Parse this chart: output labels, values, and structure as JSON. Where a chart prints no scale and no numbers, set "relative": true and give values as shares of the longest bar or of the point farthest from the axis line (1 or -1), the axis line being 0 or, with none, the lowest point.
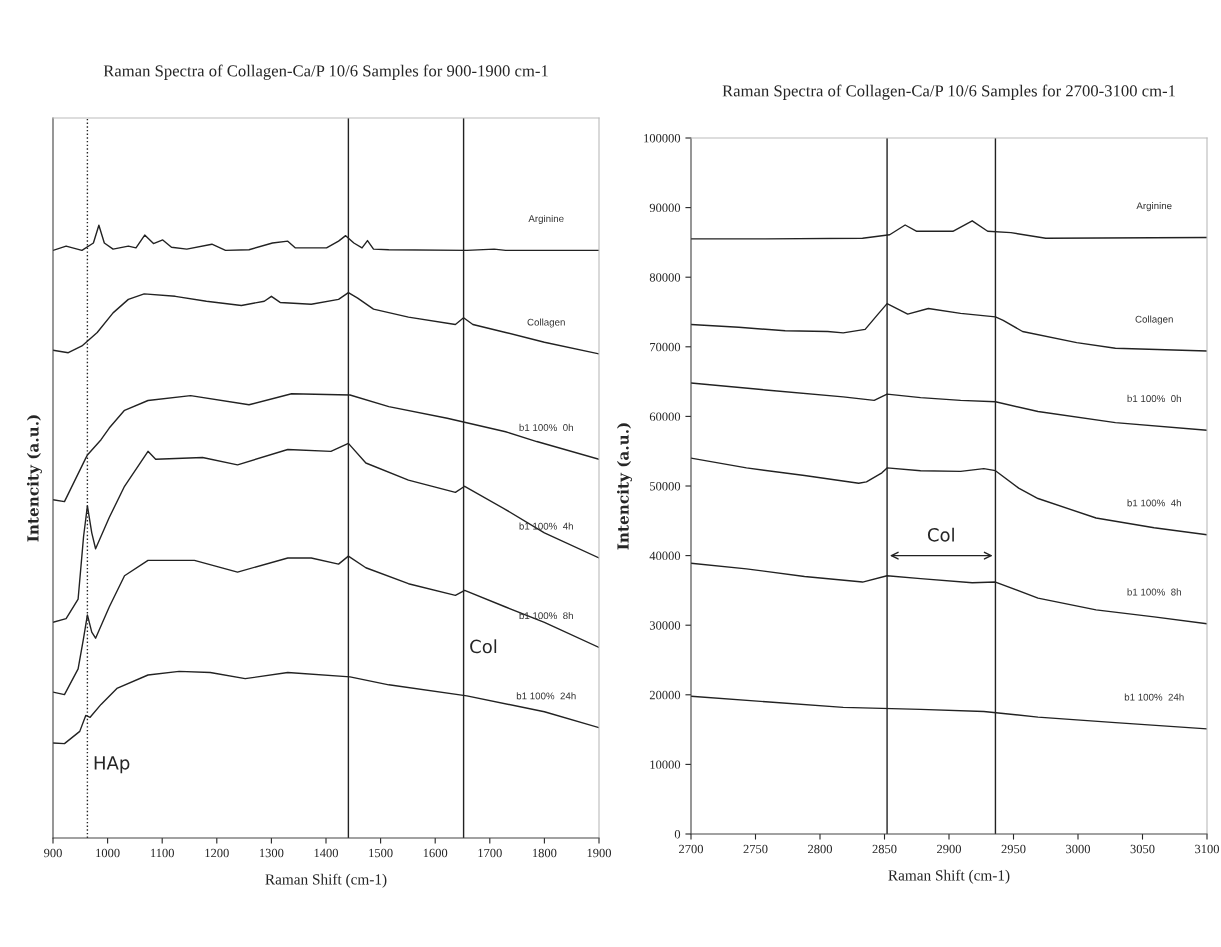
{
  "chart_data": [
    {
      "type": "line",
      "title": "Raman Spectra of Collagen-Ca/P 10/6 Samples for 900-1900 cm-1",
      "xlabel": "Raman Shift (cm-1)",
      "ylabel": "Intencity (a.u.)",
      "relative": true,
      "tick_labels": "x",
      "legend": false,
      "xlim": [
        900,
        1900
      ],
      "xticks": [
        900,
        1000,
        1100,
        1200,
        1300,
        1400,
        1500,
        1600,
        1700,
        1800,
        1900
      ],
      "series": [
        {
          "name": "Arginine",
          "color": "#222222",
          "x": [
            900,
            924,
            953,
            974,
            984,
            994,
            1010,
            1038,
            1052,
            1068,
            1084,
            1101,
            1117,
            1145,
            1191,
            1216,
            1259,
            1302,
            1330,
            1344,
            1401,
            1423,
            1436,
            1451,
            1466,
            1476,
            1487,
            1515,
            1658,
            1708,
            1729,
            1900
          ],
          "values": [
            0.959,
            0.966,
            0.959,
            0.971,
            1.0,
            0.971,
            0.961,
            0.966,
            0.963,
            0.984,
            0.97,
            0.976,
            0.964,
            0.961,
            0.969,
            0.959,
            0.96,
            0.971,
            0.974,
            0.963,
            0.963,
            0.974,
            0.983,
            0.971,
            0.963,
            0.975,
            0.961,
            0.96,
            0.959,
            0.961,
            0.959,
            0.959
          ]
        },
        {
          "name": "Collagen",
          "color": "#222222",
          "x": [
            900,
            928,
            953,
            981,
            1010,
            1038,
            1067,
            1124,
            1181,
            1245,
            1287,
            1300,
            1316,
            1373,
            1423,
            1441,
            1458,
            1487,
            1551,
            1637,
            1652,
            1669,
            1729,
            1800,
            1900
          ],
          "values": [
            0.796,
            0.792,
            0.803,
            0.825,
            0.857,
            0.879,
            0.888,
            0.884,
            0.876,
            0.869,
            0.876,
            0.884,
            0.874,
            0.871,
            0.879,
            0.89,
            0.881,
            0.863,
            0.85,
            0.838,
            0.849,
            0.838,
            0.825,
            0.809,
            0.79
          ]
        },
        {
          "name": "b1 100%  0h",
          "color": "#222222",
          "x": [
            900,
            921,
            960,
            963,
            988,
            1003,
            1031,
            1074,
            1152,
            1259,
            1337,
            1444,
            1515,
            1622,
            1729,
            1786,
            1900
          ],
          "values": [
            0.552,
            0.549,
            0.62,
            0.625,
            0.65,
            0.669,
            0.698,
            0.714,
            0.722,
            0.707,
            0.725,
            0.723,
            0.704,
            0.685,
            0.663,
            0.647,
            0.618
          ]
        },
        {
          "name": "b1 100%  4h",
          "color": "#222222",
          "x": [
            900,
            924,
            946,
            956,
            963,
            971,
            978,
            1003,
            1031,
            1074,
            1088,
            1174,
            1238,
            1330,
            1409,
            1441,
            1473,
            1551,
            1637,
            1654,
            1729,
            1800,
            1900
          ],
          "values": [
            0.352,
            0.358,
            0.39,
            0.492,
            0.542,
            0.498,
            0.472,
            0.523,
            0.574,
            0.631,
            0.618,
            0.621,
            0.609,
            0.634,
            0.631,
            0.644,
            0.612,
            0.584,
            0.564,
            0.574,
            0.536,
            0.498,
            0.457
          ]
        },
        {
          "name": "b1 100%  8h",
          "color": "#222222",
          "x": [
            900,
            921,
            946,
            956,
            963,
            971,
            978,
            1003,
            1031,
            1074,
            1159,
            1238,
            1330,
            1373,
            1423,
            1441,
            1473,
            1551,
            1637,
            1654,
            1729,
            1800,
            1900
          ],
          "values": [
            0.238,
            0.234,
            0.276,
            0.326,
            0.364,
            0.336,
            0.326,
            0.377,
            0.428,
            0.453,
            0.453,
            0.434,
            0.457,
            0.457,
            0.447,
            0.46,
            0.441,
            0.415,
            0.396,
            0.404,
            0.377,
            0.352,
            0.311
          ]
        },
        {
          "name": "b1 100%  24h",
          "color": "#222222",
          "x": [
            900,
            921,
            949,
            960,
            968,
            988,
            1017,
            1074,
            1131,
            1188,
            1252,
            1330,
            1444,
            1515,
            1658,
            1800,
            1900
          ],
          "values": [
            0.155,
            0.154,
            0.174,
            0.2,
            0.197,
            0.218,
            0.244,
            0.266,
            0.272,
            0.27,
            0.26,
            0.27,
            0.263,
            0.25,
            0.232,
            0.206,
            0.18
          ]
        }
      ],
      "ref_lines": [
        {
          "axis": "x",
          "value": 963,
          "line_style": "dotted",
          "color": "#222222"
        },
        {
          "axis": "x",
          "value": 1441,
          "line_style": "solid",
          "color": "#222222"
        },
        {
          "axis": "x",
          "value": 1652,
          "line_style": "solid",
          "color": "#222222"
        }
      ],
      "annotations": [
        {
          "text": "HAp",
          "x": 963,
          "y": 0.12
        },
        {
          "text": "Col",
          "x": 1652,
          "y": 0.31
        }
      ]
    },
    {
      "type": "line",
      "title": "Raman Spectra of Collagen-Ca/P 10/6 Samples for 2700-3100 cm-1",
      "xlabel": "Raman Shift (cm-1)",
      "ylabel": "Intencity (a.u.)",
      "legend": false,
      "xlim": [
        2700,
        3100
      ],
      "xticks": [
        2700,
        2750,
        2800,
        2850,
        2900,
        2950,
        3000,
        3050,
        3100
      ],
      "ylim": [
        0,
        100000
      ],
      "yticks": [
        0,
        10000,
        20000,
        30000,
        40000,
        50000,
        60000,
        70000,
        80000,
        90000,
        100000
      ],
      "series": [
        {
          "name": "Arginine",
          "color": "#222222",
          "x": [
            2700,
            2758,
            2833,
            2854,
            2866,
            2875,
            2903,
            2918,
            2930,
            2948,
            2975,
            3100
          ],
          "values": [
            85500,
            85500,
            85600,
            86100,
            87500,
            86600,
            86600,
            88100,
            86600,
            86400,
            85600,
            85700
          ]
        },
        {
          "name": "Collagen",
          "color": "#222222",
          "x": [
            2700,
            2737,
            2773,
            2806,
            2818,
            2835,
            2845,
            2852,
            2868,
            2884,
            2909,
            2936,
            2942,
            2957,
            2999,
            3029,
            3100
          ],
          "values": [
            73200,
            72800,
            72300,
            72200,
            72000,
            72500,
            74700,
            76200,
            74700,
            75500,
            74800,
            74300,
            73800,
            72200,
            70600,
            69800,
            69400
          ]
        },
        {
          "name": "b1 100%  0h",
          "color": "#222222",
          "x": [
            2700,
            2758,
            2818,
            2842,
            2852,
            2878,
            2909,
            2936,
            2969,
            3029,
            3100
          ],
          "values": [
            64800,
            63800,
            62800,
            62300,
            63200,
            62700,
            62300,
            62100,
            60700,
            59100,
            58000
          ]
        },
        {
          "name": "b1 100%  4h",
          "color": "#222222",
          "x": [
            2700,
            2743,
            2788,
            2830,
            2836,
            2848,
            2852,
            2878,
            2909,
            2927,
            2936,
            2954,
            2969,
            3014,
            3059,
            3100
          ],
          "values": [
            54000,
            52600,
            51500,
            50400,
            50600,
            51900,
            52600,
            52200,
            52100,
            52500,
            52200,
            49700,
            48200,
            45400,
            44000,
            43000
          ]
        },
        {
          "name": "b1 100%  8h",
          "color": "#222222",
          "x": [
            2700,
            2743,
            2788,
            2833,
            2852,
            2878,
            2918,
            2936,
            2969,
            3014,
            3059,
            3100
          ],
          "values": [
            38900,
            38100,
            37000,
            36200,
            37100,
            36700,
            36100,
            36200,
            33900,
            32200,
            31200,
            30200
          ]
        },
        {
          "name": "b1 100%  24h",
          "color": "#222222",
          "x": [
            2700,
            2758,
            2818,
            2878,
            2927,
            2969,
            3029,
            3100
          ],
          "values": [
            19800,
            19000,
            18200,
            17900,
            17600,
            16800,
            16000,
            15100
          ]
        }
      ],
      "ref_lines": [
        {
          "axis": "x",
          "value": 2852,
          "line_style": "solid",
          "color": "#222222"
        },
        {
          "axis": "x",
          "value": 2936,
          "line_style": "solid",
          "color": "#222222"
        }
      ],
      "annotations": [
        "Col"
      ]
    }
  ]
}
